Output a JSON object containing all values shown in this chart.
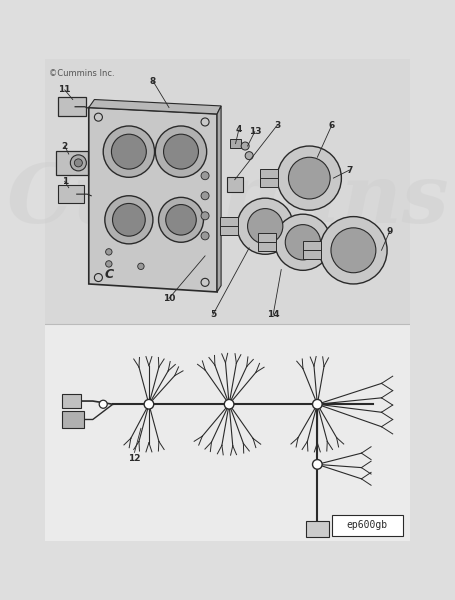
{
  "bg_color": "#dedede",
  "upper_bg": "#d0d0d0",
  "lower_bg": "#eeeeee",
  "line_color": "#2a2a2a",
  "ref_label": "ep600gb",
  "copyright": "©Cummins Inc.",
  "watermark": "Cummins"
}
